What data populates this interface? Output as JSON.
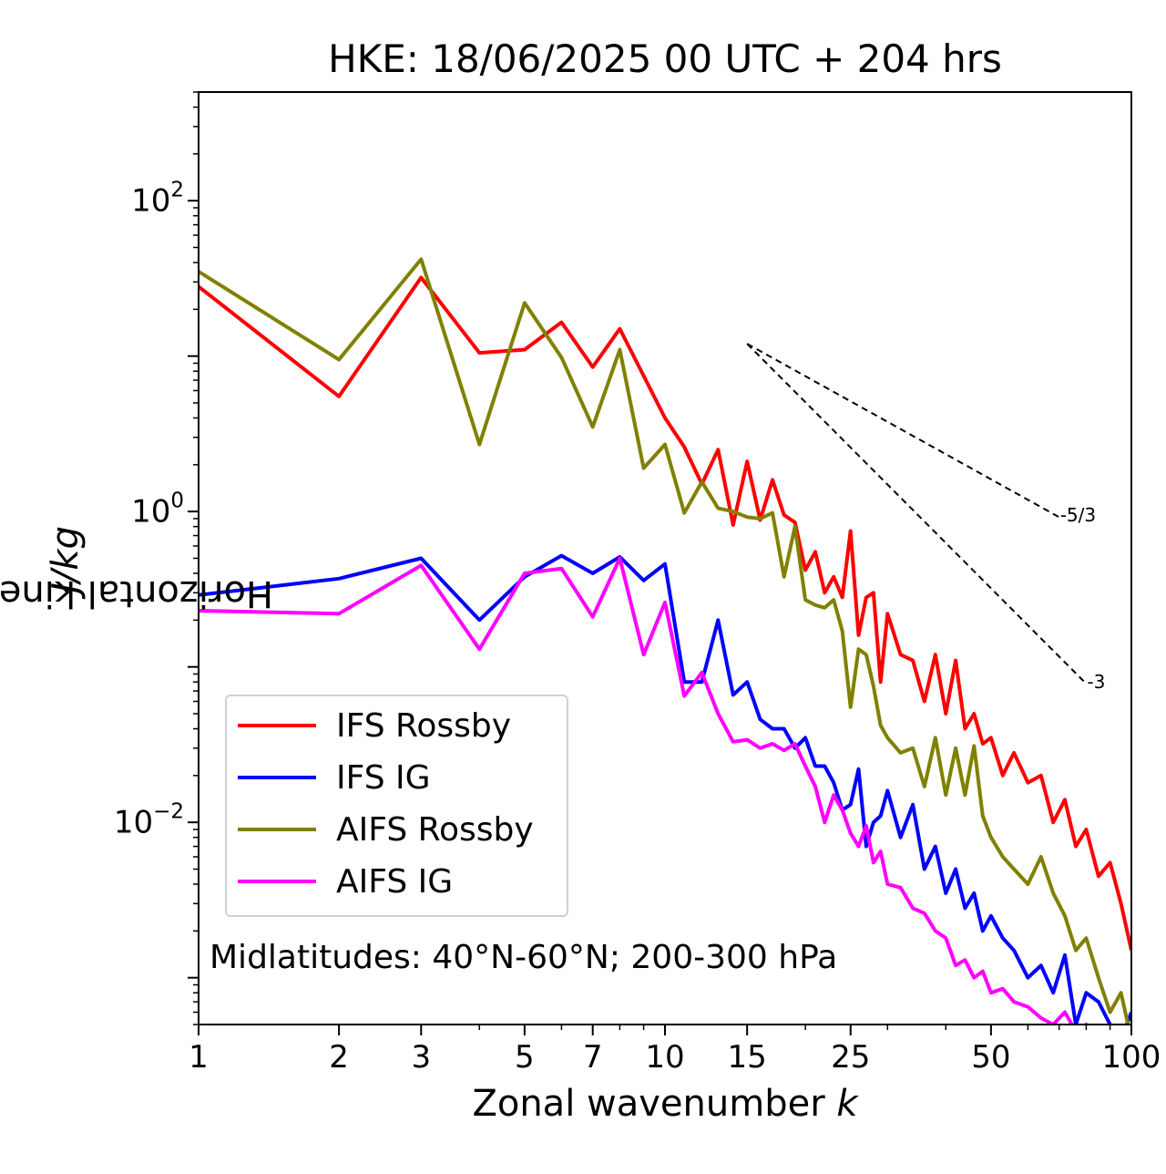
{
  "chart_data": {
    "type": "line",
    "title": "HKE: 18/06/2025 00 UTC + 204 hrs",
    "xlabel": "Zonal wavenumber",
    "xlabel_var": "k",
    "ylabel": "Horizontal kinetic energy",
    "ylabel_unit": "J/kg",
    "xscale": "log",
    "yscale": "log",
    "xlim": [
      1,
      100
    ],
    "ylim": [
      0.0005,
      500
    ],
    "grid": false,
    "legend_placement": "lower-left",
    "x_ticks": [
      1,
      2,
      3,
      5,
      7,
      10,
      15,
      25,
      50,
      100
    ],
    "x_tick_labels": [
      "1",
      "2",
      "3",
      "5",
      "7",
      "10",
      "15",
      "25",
      "50",
      "100"
    ],
    "y_ticks": [
      {
        "value": 100,
        "base": "10",
        "exp": "2"
      },
      {
        "value": 1,
        "base": "10",
        "exp": "0"
      },
      {
        "value": 0.01,
        "base": "10",
        "exp": "−2"
      }
    ],
    "annotation": "Midlatitudes: 40°N-60°N; 200-300 hPa",
    "reference_slopes": [
      {
        "label": "-5/3",
        "x": [
          15,
          70
        ],
        "y": [
          12,
          0.92
        ]
      },
      {
        "label": "-3",
        "x": [
          15,
          80
        ],
        "y": [
          12,
          0.078
        ]
      }
    ],
    "series": [
      {
        "name": "IFS Rossby",
        "color": "#ff0000",
        "x": [
          1,
          2,
          3,
          4,
          5,
          6,
          7,
          8,
          10,
          11,
          12,
          13,
          14,
          15,
          16,
          17,
          18,
          19,
          20,
          21,
          22,
          23,
          24,
          25,
          26,
          27,
          28,
          29,
          30,
          32,
          34,
          36,
          38,
          40,
          42,
          44,
          46,
          48,
          50,
          53,
          56,
          60,
          64,
          68,
          72,
          76,
          80,
          85,
          90,
          95,
          100
        ],
        "y": [
          28,
          5.5,
          32,
          10.5,
          11,
          16.5,
          8.5,
          15,
          4,
          2.6,
          1.5,
          2.5,
          0.82,
          2.1,
          0.88,
          1.6,
          0.95,
          0.85,
          0.42,
          0.55,
          0.3,
          0.38,
          0.28,
          0.75,
          0.16,
          0.28,
          0.3,
          0.08,
          0.22,
          0.12,
          0.11,
          0.06,
          0.12,
          0.05,
          0.11,
          0.04,
          0.05,
          0.032,
          0.035,
          0.02,
          0.028,
          0.018,
          0.02,
          0.01,
          0.014,
          0.007,
          0.009,
          0.0045,
          0.0055,
          0.003,
          0.0015
        ]
      },
      {
        "name": "IFS IG",
        "color": "#0000ff",
        "x": [
          1,
          2,
          3,
          4,
          5,
          6,
          7,
          8,
          9,
          10,
          11,
          12,
          13,
          14,
          15,
          16,
          17,
          18,
          19,
          20,
          21,
          22,
          23,
          24,
          25,
          26,
          27,
          28,
          29,
          30,
          32,
          34,
          36,
          38,
          40,
          42,
          44,
          46,
          48,
          50,
          53,
          56,
          60,
          64,
          68,
          72,
          76,
          80,
          85,
          90,
          95,
          100
        ],
        "y": [
          0.29,
          0.37,
          0.5,
          0.2,
          0.38,
          0.52,
          0.4,
          0.51,
          0.36,
          0.46,
          0.08,
          0.08,
          0.2,
          0.066,
          0.08,
          0.046,
          0.04,
          0.04,
          0.03,
          0.035,
          0.023,
          0.023,
          0.018,
          0.012,
          0.013,
          0.022,
          0.007,
          0.01,
          0.011,
          0.016,
          0.008,
          0.013,
          0.005,
          0.007,
          0.0035,
          0.005,
          0.0028,
          0.0035,
          0.002,
          0.0025,
          0.0018,
          0.0015,
          0.001,
          0.0012,
          0.0008,
          0.0014,
          0.0005,
          0.0008,
          0.0007,
          0.0005,
          0.0004,
          0.0006
        ]
      },
      {
        "name": "AIFS Rossby",
        "color": "#808000",
        "x": [
          1,
          2,
          3,
          4,
          5,
          6,
          7,
          8,
          9,
          10,
          11,
          12,
          13,
          14,
          15,
          16,
          17,
          18,
          19,
          20,
          21,
          22,
          23,
          24,
          25,
          26,
          27,
          28,
          29,
          30,
          32,
          34,
          36,
          38,
          40,
          42,
          44,
          46,
          48,
          50,
          53,
          56,
          60,
          64,
          68,
          72,
          76,
          80,
          85,
          90,
          95,
          100
        ],
        "y": [
          35,
          9.5,
          42,
          2.7,
          22,
          9.8,
          3.5,
          11,
          1.9,
          2.7,
          0.98,
          1.55,
          1.05,
          1.0,
          0.92,
          0.9,
          0.98,
          0.38,
          0.8,
          0.27,
          0.25,
          0.24,
          0.27,
          0.17,
          0.055,
          0.13,
          0.12,
          0.075,
          0.042,
          0.035,
          0.028,
          0.03,
          0.017,
          0.035,
          0.015,
          0.03,
          0.015,
          0.031,
          0.011,
          0.008,
          0.006,
          0.005,
          0.004,
          0.006,
          0.0035,
          0.0025,
          0.0015,
          0.0018,
          0.001,
          0.0006,
          0.0008,
          0.0004
        ]
      },
      {
        "name": "AIFS IG",
        "color": "#ff00ff",
        "x": [
          1,
          2,
          3,
          4,
          5,
          6,
          7,
          8,
          9,
          10,
          11,
          12,
          13,
          14,
          15,
          16,
          17,
          18,
          19,
          20,
          21,
          22,
          23,
          24,
          25,
          26,
          27,
          28,
          29,
          30,
          32,
          34,
          36,
          38,
          40,
          42,
          44,
          46,
          48,
          50,
          53,
          56,
          60,
          64,
          68,
          72,
          76,
          80,
          85,
          90,
          95,
          100
        ],
        "y": [
          0.23,
          0.22,
          0.45,
          0.13,
          0.4,
          0.43,
          0.21,
          0.5,
          0.12,
          0.26,
          0.065,
          0.092,
          0.05,
          0.033,
          0.034,
          0.03,
          0.032,
          0.029,
          0.032,
          0.023,
          0.017,
          0.01,
          0.015,
          0.012,
          0.0085,
          0.007,
          0.0095,
          0.0055,
          0.0065,
          0.004,
          0.0038,
          0.0028,
          0.0026,
          0.002,
          0.0018,
          0.0012,
          0.0013,
          0.001,
          0.0011,
          0.0008,
          0.00085,
          0.0007,
          0.00065,
          0.00055,
          0.0005,
          0.0006,
          0.00045,
          0.0005,
          0.0004,
          0.00045,
          0.0004,
          0.00035
        ]
      }
    ]
  }
}
